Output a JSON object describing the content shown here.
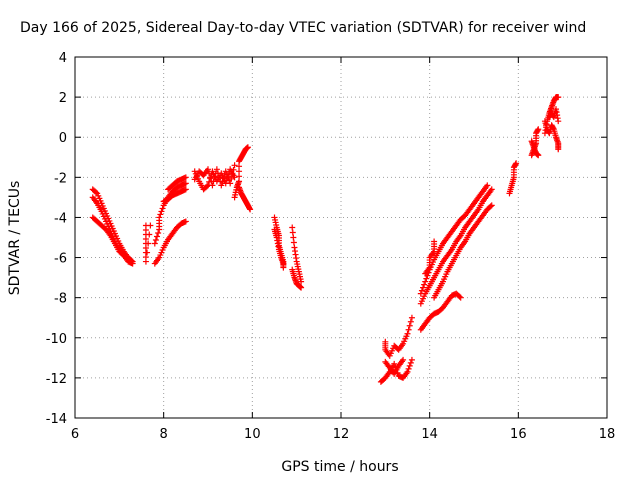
{
  "chart_data": {
    "type": "scatter",
    "title": "Day 166 of 2025, Sidereal Day-to-day VTEC variation (SDTVAR) for receiver wind",
    "xlabel": "GPS time / hours",
    "ylabel": "SDTVAR / TECUs",
    "xlim": [
      6,
      18
    ],
    "ylim": [
      -14,
      4
    ],
    "x_ticks": [
      "6",
      "8",
      "10",
      "12",
      "14",
      "16",
      "18"
    ],
    "y_ticks": [
      "4",
      "2",
      "0",
      "-2",
      "-4",
      "-6",
      "-8",
      "-10",
      "-12",
      "-14"
    ],
    "grid": true,
    "marker": "plus",
    "color": "#ff0000",
    "segments": [
      {
        "points": [
          [
            6.4,
            -2.6
          ],
          [
            6.5,
            -2.8
          ],
          [
            6.6,
            -3.3
          ],
          [
            6.7,
            -3.8
          ],
          [
            6.8,
            -4.3
          ],
          [
            6.9,
            -4.8
          ],
          [
            7.0,
            -5.3
          ],
          [
            7.1,
            -5.7
          ],
          [
            7.2,
            -6.0
          ],
          [
            7.3,
            -6.2
          ]
        ]
      },
      {
        "points": [
          [
            6.4,
            -3.0
          ],
          [
            6.5,
            -3.3
          ],
          [
            6.6,
            -3.7
          ],
          [
            6.7,
            -4.2
          ],
          [
            6.8,
            -4.7
          ],
          [
            6.9,
            -5.2
          ],
          [
            7.0,
            -5.6
          ],
          [
            7.1,
            -5.9
          ],
          [
            7.2,
            -6.2
          ],
          [
            7.3,
            -6.3
          ]
        ]
      },
      {
        "points": [
          [
            6.4,
            -4.0
          ],
          [
            6.5,
            -4.2
          ],
          [
            6.6,
            -4.4
          ],
          [
            6.7,
            -4.6
          ],
          [
            6.8,
            -4.9
          ],
          [
            6.9,
            -5.3
          ],
          [
            7.0,
            -5.7
          ],
          [
            7.1,
            -5.9
          ],
          [
            7.2,
            -6.1
          ]
        ]
      },
      {
        "points": [
          [
            7.6,
            -4.4
          ],
          [
            7.6,
            -5.3
          ],
          [
            7.6,
            -6.2
          ],
          [
            7.7,
            -4.4
          ]
        ]
      },
      {
        "points": [
          [
            7.8,
            -6.3
          ],
          [
            7.9,
            -6.0
          ],
          [
            8.0,
            -5.5
          ],
          [
            8.1,
            -5.1
          ],
          [
            8.2,
            -4.8
          ],
          [
            8.3,
            -4.5
          ],
          [
            8.4,
            -4.3
          ],
          [
            8.5,
            -4.2
          ]
        ]
      },
      {
        "points": [
          [
            7.8,
            -5.3
          ],
          [
            7.9,
            -4.6
          ],
          [
            7.9,
            -4.0
          ],
          [
            8.0,
            -3.4
          ],
          [
            8.1,
            -3.0
          ],
          [
            8.2,
            -2.7
          ],
          [
            8.3,
            -2.5
          ],
          [
            8.4,
            -2.4
          ],
          [
            8.5,
            -2.3
          ]
        ]
      },
      {
        "points": [
          [
            8.0,
            -3.2
          ],
          [
            8.1,
            -3.1
          ],
          [
            8.2,
            -2.9
          ],
          [
            8.3,
            -2.8
          ],
          [
            8.4,
            -2.7
          ],
          [
            8.5,
            -2.6
          ]
        ]
      },
      {
        "points": [
          [
            8.1,
            -2.6
          ],
          [
            8.2,
            -2.4
          ],
          [
            8.3,
            -2.2
          ],
          [
            8.4,
            -2.1
          ],
          [
            8.5,
            -2.0
          ]
        ]
      },
      {
        "points": [
          [
            8.7,
            -1.7
          ],
          [
            8.8,
            -2.2
          ],
          [
            8.9,
            -2.6
          ],
          [
            9.0,
            -2.4
          ],
          [
            9.1,
            -1.7
          ],
          [
            9.2,
            -2.2
          ],
          [
            9.3,
            -1.8
          ],
          [
            9.4,
            -2.3
          ],
          [
            9.5,
            -1.6
          ],
          [
            9.6,
            -2.0
          ]
        ]
      },
      {
        "points": [
          [
            8.7,
            -2.1
          ],
          [
            8.8,
            -1.7
          ],
          [
            8.9,
            -1.9
          ],
          [
            9.0,
            -1.6
          ],
          [
            9.1,
            -2.4
          ],
          [
            9.2,
            -1.6
          ],
          [
            9.3,
            -2.4
          ],
          [
            9.4,
            -1.7
          ],
          [
            9.5,
            -2.3
          ],
          [
            9.6,
            -1.4
          ]
        ]
      },
      {
        "points": [
          [
            9.6,
            -3.0
          ],
          [
            9.65,
            -2.5
          ],
          [
            9.7,
            -2.2
          ],
          [
            9.7,
            -1.2
          ],
          [
            9.75,
            -1.0
          ],
          [
            9.8,
            -0.8
          ],
          [
            9.85,
            -0.6
          ],
          [
            9.9,
            -0.5
          ]
        ]
      },
      {
        "points": [
          [
            9.7,
            -2.5
          ],
          [
            9.75,
            -2.8
          ],
          [
            9.8,
            -3.0
          ],
          [
            9.85,
            -3.2
          ],
          [
            9.9,
            -3.4
          ],
          [
            9.95,
            -3.6
          ]
        ]
      },
      {
        "points": [
          [
            10.5,
            -4.0
          ],
          [
            10.55,
            -4.5
          ],
          [
            10.6,
            -4.9
          ],
          [
            10.6,
            -5.4
          ],
          [
            10.65,
            -5.8
          ],
          [
            10.7,
            -6.2
          ],
          [
            10.7,
            -6.5
          ]
        ]
      },
      {
        "points": [
          [
            10.5,
            -4.6
          ],
          [
            10.55,
            -5.0
          ],
          [
            10.6,
            -5.6
          ],
          [
            10.65,
            -6.0
          ],
          [
            10.7,
            -6.3
          ]
        ]
      },
      {
        "points": [
          [
            10.9,
            -4.5
          ],
          [
            10.95,
            -5.5
          ],
          [
            11.0,
            -6.2
          ],
          [
            11.05,
            -6.7
          ],
          [
            11.1,
            -7.2
          ]
        ]
      },
      {
        "points": [
          [
            10.9,
            -6.6
          ],
          [
            10.95,
            -7.0
          ],
          [
            11.0,
            -7.3
          ],
          [
            11.05,
            -7.4
          ],
          [
            11.1,
            -7.5
          ]
        ]
      },
      {
        "points": [
          [
            13.0,
            -10.2
          ],
          [
            13.0,
            -10.6
          ],
          [
            13.1,
            -10.9
          ],
          [
            13.2,
            -10.4
          ],
          [
            13.3,
            -10.6
          ],
          [
            13.4,
            -10.3
          ],
          [
            13.5,
            -9.8
          ],
          [
            13.6,
            -9.0
          ]
        ]
      },
      {
        "points": [
          [
            12.9,
            -12.2
          ],
          [
            13.0,
            -12.0
          ],
          [
            13.1,
            -11.7
          ],
          [
            13.2,
            -11.3
          ],
          [
            13.3,
            -11.9
          ],
          [
            13.4,
            -12.0
          ],
          [
            13.5,
            -11.7
          ],
          [
            13.6,
            -11.1
          ]
        ]
      },
      {
        "points": [
          [
            13.0,
            -11.2
          ],
          [
            13.1,
            -11.5
          ],
          [
            13.2,
            -11.8
          ],
          [
            13.3,
            -11.4
          ],
          [
            13.4,
            -11.1
          ]
        ]
      },
      {
        "points": [
          [
            13.8,
            -9.6
          ],
          [
            13.9,
            -9.3
          ],
          [
            14.0,
            -9.0
          ],
          [
            14.1,
            -8.8
          ],
          [
            14.2,
            -8.7
          ],
          [
            14.3,
            -8.5
          ],
          [
            14.4,
            -8.2
          ],
          [
            14.5,
            -7.9
          ],
          [
            14.6,
            -7.8
          ],
          [
            14.7,
            -8.0
          ]
        ]
      },
      {
        "points": [
          [
            13.8,
            -8.3
          ],
          [
            13.9,
            -7.8
          ],
          [
            14.0,
            -7.4
          ],
          [
            14.1,
            -7.0
          ],
          [
            14.2,
            -6.6
          ],
          [
            14.3,
            -6.2
          ],
          [
            14.4,
            -5.9
          ],
          [
            14.5,
            -5.6
          ],
          [
            14.6,
            -5.2
          ],
          [
            14.7,
            -4.9
          ],
          [
            14.8,
            -4.5
          ],
          [
            14.9,
            -4.2
          ],
          [
            15.0,
            -3.9
          ],
          [
            15.1,
            -3.6
          ],
          [
            15.2,
            -3.2
          ],
          [
            15.3,
            -2.9
          ],
          [
            15.4,
            -2.6
          ]
        ]
      },
      {
        "points": [
          [
            13.8,
            -7.8
          ],
          [
            13.9,
            -7.2
          ],
          [
            14.0,
            -6.6
          ],
          [
            14.1,
            -6.1
          ],
          [
            14.2,
            -5.7
          ],
          [
            14.3,
            -5.3
          ],
          [
            14.4,
            -5.0
          ],
          [
            14.5,
            -4.7
          ],
          [
            14.6,
            -4.4
          ],
          [
            14.7,
            -4.1
          ],
          [
            14.8,
            -3.9
          ],
          [
            14.9,
            -3.6
          ],
          [
            15.0,
            -3.3
          ],
          [
            15.1,
            -3.0
          ],
          [
            15.2,
            -2.7
          ],
          [
            15.3,
            -2.4
          ]
        ]
      },
      {
        "points": [
          [
            14.1,
            -8.0
          ],
          [
            14.2,
            -7.6
          ],
          [
            14.3,
            -7.2
          ],
          [
            14.4,
            -6.7
          ],
          [
            14.5,
            -6.3
          ],
          [
            14.6,
            -5.9
          ],
          [
            14.7,
            -5.5
          ],
          [
            14.8,
            -5.2
          ],
          [
            14.9,
            -4.8
          ],
          [
            15.0,
            -4.5
          ],
          [
            15.1,
            -4.2
          ],
          [
            15.2,
            -3.9
          ],
          [
            15.3,
            -3.6
          ],
          [
            15.4,
            -3.4
          ]
        ]
      },
      {
        "points": [
          [
            13.9,
            -6.8
          ],
          [
            14.0,
            -6.5
          ],
          [
            14.0,
            -6.0
          ],
          [
            14.1,
            -5.7
          ],
          [
            14.1,
            -5.2
          ]
        ]
      },
      {
        "points": [
          [
            15.8,
            -2.8
          ],
          [
            15.85,
            -2.4
          ],
          [
            15.9,
            -2.0
          ],
          [
            15.9,
            -1.5
          ],
          [
            15.95,
            -1.3
          ]
        ]
      },
      {
        "points": [
          [
            16.3,
            -0.9
          ],
          [
            16.35,
            -0.6
          ],
          [
            16.4,
            -0.3
          ],
          [
            16.4,
            0.2
          ],
          [
            16.45,
            0.4
          ]
        ]
      },
      {
        "points": [
          [
            16.3,
            -0.2
          ],
          [
            16.35,
            -0.5
          ],
          [
            16.4,
            -0.8
          ],
          [
            16.45,
            -0.9
          ]
        ]
      },
      {
        "points": [
          [
            16.6,
            0.2
          ],
          [
            16.65,
            0.8
          ],
          [
            16.7,
            1.2
          ],
          [
            16.75,
            1.5
          ],
          [
            16.8,
            1.8
          ],
          [
            16.85,
            2.0
          ],
          [
            16.9,
            2.0
          ]
        ]
      },
      {
        "points": [
          [
            16.6,
            0.8
          ],
          [
            16.65,
            0.4
          ],
          [
            16.7,
            0.2
          ],
          [
            16.75,
            0.6
          ],
          [
            16.8,
            0.4
          ],
          [
            16.85,
            0.0
          ],
          [
            16.9,
            -0.3
          ],
          [
            16.9,
            -0.6
          ]
        ]
      },
      {
        "points": [
          [
            16.7,
            1.0
          ],
          [
            16.75,
            1.2
          ],
          [
            16.8,
            1.0
          ],
          [
            16.85,
            1.4
          ],
          [
            16.9,
            0.8
          ]
        ]
      }
    ]
  }
}
